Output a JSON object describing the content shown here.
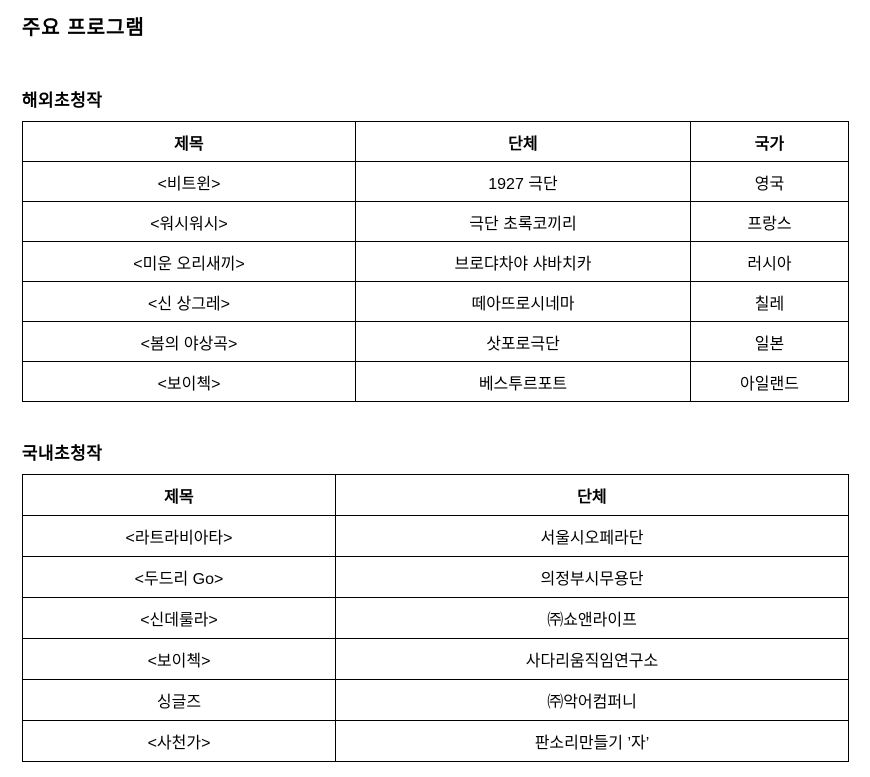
{
  "page": {
    "title": "주요 프로그램"
  },
  "colors": {
    "text": "#000000",
    "border": "#000000",
    "background": "#ffffff"
  },
  "sections": [
    {
      "id": "overseas",
      "heading": "해외초청작",
      "table": {
        "headers": [
          "제목",
          "단체",
          "국가"
        ],
        "rows": [
          [
            "<비트윈>",
            "1927 극단",
            "영국"
          ],
          [
            "<워시워시>",
            "극단 초록코끼리",
            "프랑스"
          ],
          [
            "<미운 오리새끼>",
            "브로댜차야 샤바치카",
            "러시아"
          ],
          [
            "<신 상그레>",
            "떼아뜨로시네마",
            "칠레"
          ],
          [
            "<봄의 야상곡>",
            "삿포로극단",
            "일본"
          ],
          [
            "<보이첵>",
            "베스투르포트",
            "아일랜드"
          ]
        ]
      }
    },
    {
      "id": "domestic",
      "heading": "국내초청작",
      "table": {
        "headers": [
          "제목",
          "단체"
        ],
        "rows": [
          [
            "<라트라비아타>",
            "서울시오페라단"
          ],
          [
            "<두드리 Go>",
            "의정부시무용단"
          ],
          [
            "<신데룰라>",
            "㈜쇼앤라이프"
          ],
          [
            "<보이첵>",
            "사다리움직임연구소"
          ],
          [
            "싱글즈",
            "㈜악어컴퍼니"
          ],
          [
            "<사천가>",
            "판소리만들기 ’자’"
          ]
        ]
      }
    }
  ]
}
